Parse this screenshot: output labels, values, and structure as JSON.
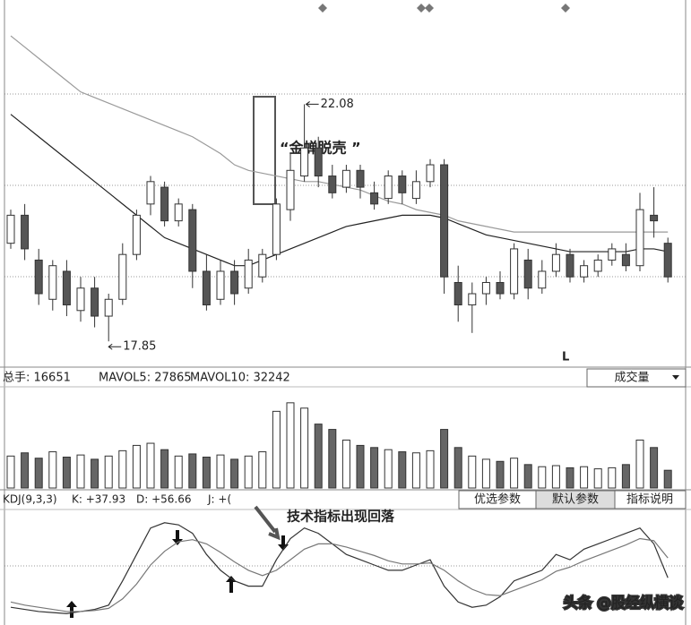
{
  "chart_data": [
    {
      "type": "candlestick",
      "open": [
        19.6,
        20.1,
        19.3,
        18.6,
        19.1,
        18.4,
        18.8,
        18.3,
        18.6,
        19.4,
        20.3,
        20.6,
        20.0,
        20.2,
        19.1,
        18.6,
        19.1,
        18.8,
        19.0,
        19.4,
        20.2,
        20.8,
        21.3,
        20.8,
        20.6,
        20.9,
        20.5,
        20.4,
        20.8,
        20.4,
        20.7,
        21.0,
        18.9,
        18.5,
        18.7,
        18.9,
        18.7,
        19.3,
        18.8,
        19.1,
        19.4,
        19.0,
        19.1,
        19.3,
        19.4,
        19.2,
        20.1,
        19.6
      ],
      "high": [
        20.2,
        20.3,
        19.5,
        19.3,
        19.3,
        19.0,
        19.0,
        18.7,
        19.6,
        20.2,
        20.8,
        20.7,
        20.4,
        20.3,
        19.4,
        19.3,
        19.3,
        19.5,
        19.5,
        20.4,
        21.2,
        22.08,
        21.5,
        21.0,
        21.0,
        21.0,
        20.7,
        20.9,
        20.9,
        20.9,
        21.1,
        21.1,
        19.2,
        18.9,
        19.0,
        19.1,
        19.6,
        19.5,
        19.3,
        19.6,
        19.5,
        19.3,
        19.4,
        19.6,
        19.6,
        20.5,
        20.6,
        19.7
      ],
      "low": [
        19.5,
        19.3,
        18.5,
        18.4,
        18.3,
        18.2,
        18.1,
        17.85,
        18.5,
        19.3,
        20.1,
        19.9,
        19.9,
        18.8,
        18.4,
        18.5,
        18.5,
        18.7,
        18.9,
        19.3,
        20.0,
        20.7,
        20.6,
        20.4,
        20.5,
        20.4,
        20.2,
        20.3,
        20.3,
        20.3,
        20.6,
        18.7,
        18.2,
        18.0,
        18.5,
        18.6,
        18.6,
        18.6,
        18.7,
        19.0,
        18.9,
        18.9,
        19.0,
        19.2,
        19.1,
        19.1,
        19.7,
        18.9
      ],
      "close": [
        20.1,
        19.5,
        18.7,
        19.2,
        18.5,
        18.8,
        18.3,
        18.6,
        19.4,
        20.1,
        20.7,
        20.0,
        20.3,
        19.1,
        18.5,
        19.1,
        18.7,
        19.3,
        19.4,
        20.3,
        20.9,
        21.3,
        20.8,
        20.5,
        20.9,
        20.6,
        20.3,
        20.8,
        20.5,
        20.7,
        21.0,
        19.0,
        18.5,
        18.7,
        18.9,
        18.7,
        19.5,
        18.8,
        19.1,
        19.4,
        19.0,
        19.2,
        19.3,
        19.5,
        19.2,
        20.2,
        20.0,
        19.0
      ],
      "series": [
        {
          "color": "#222222",
          "values": [
            21.9,
            21.7,
            21.5,
            21.3,
            21.1,
            20.9,
            20.7,
            20.5,
            20.3,
            20.1,
            19.9,
            19.7,
            19.6,
            19.5,
            19.4,
            19.3,
            19.2,
            19.2,
            19.3,
            19.4,
            19.5,
            19.6,
            19.7,
            19.8,
            19.9,
            19.95,
            20.0,
            20.05,
            20.1,
            20.1,
            20.1,
            20.05,
            19.95,
            19.85,
            19.75,
            19.7,
            19.65,
            19.6,
            19.55,
            19.5,
            19.45,
            19.45,
            19.45,
            19.45,
            19.45,
            19.5,
            19.5,
            19.45
          ]
        },
        {
          "color": "#9a9a9a",
          "values": [
            23.3,
            23.1,
            22.9,
            22.7,
            22.5,
            22.3,
            22.2,
            22.1,
            22.0,
            21.9,
            21.8,
            21.7,
            21.6,
            21.5,
            21.35,
            21.2,
            21.0,
            20.9,
            20.85,
            20.8,
            20.75,
            20.7,
            20.7,
            20.65,
            20.6,
            20.55,
            20.45,
            20.35,
            20.3,
            20.2,
            20.15,
            20.1,
            20.0,
            19.95,
            19.9,
            19.85,
            19.8,
            19.8,
            19.8,
            19.8,
            19.8,
            19.8,
            19.8,
            19.8,
            19.8,
            19.8,
            19.8,
            19.8
          ]
        }
      ],
      "ylim": [
        17.47,
        23.94
      ],
      "high_label": 22.08,
      "low_label": 17.85,
      "annotations": [
        "“金蝉脱壳 ”",
        "L"
      ]
    },
    {
      "type": "bar",
      "header": [
        "总手: 16651",
        "MAVOL5: 27865",
        "MAVOL10: 32242"
      ],
      "values": [
        30000,
        33000,
        28000,
        34000,
        29000,
        31000,
        27000,
        30000,
        35000,
        40000,
        42000,
        36000,
        30000,
        32000,
        29000,
        31000,
        27000,
        30000,
        34000,
        72000,
        80000,
        75000,
        60000,
        55000,
        45000,
        40000,
        38000,
        36000,
        34000,
        33000,
        35000,
        55000,
        38000,
        30000,
        27000,
        25000,
        28000,
        22000,
        20000,
        21000,
        19000,
        20000,
        18000,
        19000,
        22000,
        45000,
        38000,
        16651
      ],
      "ylim": [
        0,
        95000
      ]
    },
    {
      "type": "line",
      "header": [
        "KDJ(9,3,3)",
        "K: +37.93",
        "D: +56.66",
        "J: +("
      ],
      "series": [
        {
          "color": "#333333",
          "values": [
            10,
            8,
            6,
            5,
            4,
            6,
            8,
            12,
            35,
            60,
            85,
            90,
            88,
            80,
            60,
            45,
            35,
            30,
            30,
            55,
            75,
            85,
            80,
            70,
            60,
            55,
            50,
            45,
            45,
            50,
            55,
            30,
            15,
            10,
            12,
            20,
            35,
            40,
            45,
            60,
            55,
            65,
            70,
            75,
            80,
            85,
            70,
            37.93
          ]
        },
        {
          "color": "#777777",
          "values": [
            15,
            12,
            10,
            8,
            6,
            6,
            7,
            9,
            18,
            32,
            50,
            63,
            72,
            74,
            70,
            62,
            53,
            45,
            40,
            45,
            55,
            65,
            70,
            70,
            67,
            63,
            59,
            54,
            51,
            51,
            52,
            45,
            35,
            27,
            22,
            21,
            26,
            31,
            36,
            44,
            48,
            54,
            59,
            64,
            69,
            75,
            73,
            56.66
          ]
        }
      ],
      "ylim": [
        0,
        100
      ],
      "annotations": [
        "技术指标出现回落"
      ]
    }
  ],
  "ui": {
    "dropdown": "成交量",
    "buttons": [
      "优选参数",
      "默认参数",
      "指标说明"
    ],
    "watermark": "头条 @股经纵横谈"
  }
}
